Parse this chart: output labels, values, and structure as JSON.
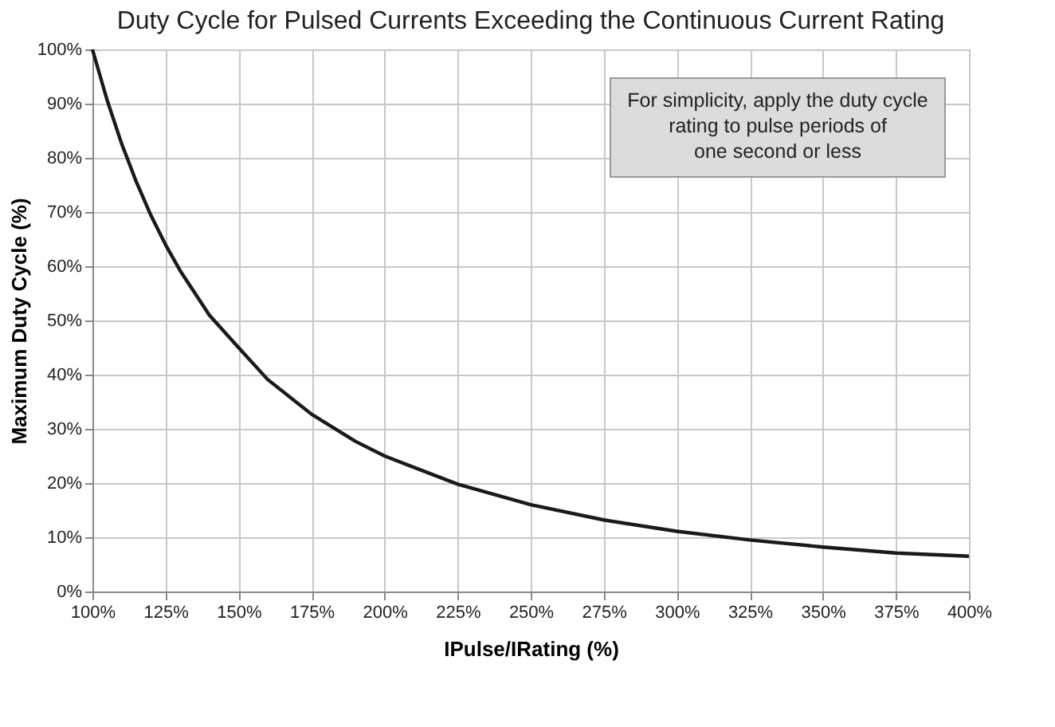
{
  "chart_data": {
    "type": "line",
    "title": "Duty Cycle for Pulsed Currents Exceeding the Continuous Current Rating",
    "xlabel": "IPulse/IRating (%)",
    "ylabel": "Maximum Duty Cycle (%)",
    "x": [
      100,
      105,
      110,
      115,
      120,
      125,
      130,
      140,
      150,
      160,
      175,
      190,
      200,
      225,
      250,
      275,
      300,
      325,
      350,
      375,
      400
    ],
    "series": [
      {
        "color": "#1a1a1a",
        "values": [
          100,
          90.7,
          82.6,
          75.6,
          69.4,
          64,
          59.2,
          51,
          45,
          39.1,
          32.7,
          27.7,
          25,
          19.8,
          16,
          13.2,
          11.1,
          9.5,
          8.2,
          7.1,
          6.5
        ]
      }
    ],
    "xlim": [
      100,
      400
    ],
    "ylim": [
      0,
      100
    ],
    "xticks": [
      {
        "value": 100,
        "label": "100%"
      },
      {
        "value": 125,
        "label": "125%"
      },
      {
        "value": 150,
        "label": "150%"
      },
      {
        "value": 175,
        "label": "175%"
      },
      {
        "value": 200,
        "label": "200%"
      },
      {
        "value": 225,
        "label": "225%"
      },
      {
        "value": 250,
        "label": "250%"
      },
      {
        "value": 275,
        "label": "275%"
      },
      {
        "value": 300,
        "label": "300%"
      },
      {
        "value": 325,
        "label": "325%"
      },
      {
        "value": 350,
        "label": "350%"
      },
      {
        "value": 375,
        "label": "375%"
      },
      {
        "value": 400,
        "label": "400%"
      }
    ],
    "yticks": [
      {
        "value": 0,
        "label": "0%"
      },
      {
        "value": 10,
        "label": "10%"
      },
      {
        "value": 20,
        "label": "20%"
      },
      {
        "value": 30,
        "label": "30%"
      },
      {
        "value": 40,
        "label": "40%"
      },
      {
        "value": 50,
        "label": "50%"
      },
      {
        "value": 60,
        "label": "60%"
      },
      {
        "value": 70,
        "label": "70%"
      },
      {
        "value": 80,
        "label": "80%"
      },
      {
        "value": 90,
        "label": "90%"
      },
      {
        "value": 100,
        "label": "100%"
      }
    ],
    "annotations": [
      "For simplicity, apply the duty cycle\nrating to pulse periods of\none second or less"
    ],
    "grid": true,
    "legend": false,
    "marker": "none",
    "line_style": "solid"
  }
}
